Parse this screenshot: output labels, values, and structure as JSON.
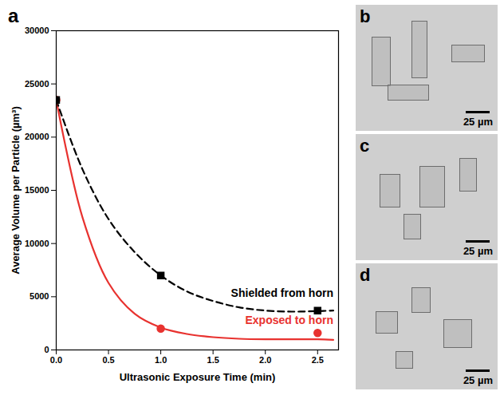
{
  "chart_data": {
    "type": "line",
    "panel_label": "a",
    "x_label": "Ultrasonic Exposure Time (min)",
    "y_label": "Average Volume per Particle (µm³)",
    "xlim": [
      0,
      2.7
    ],
    "xticks": [
      {
        "value": 0,
        "label": "0.0"
      },
      {
        "value": 0.5,
        "label": "0.5"
      },
      {
        "value": 1,
        "label": "1.0"
      },
      {
        "value": 1.5,
        "label": "1.5"
      },
      {
        "value": 2,
        "label": "2.0"
      },
      {
        "value": 2.5,
        "label": "2.5"
      }
    ],
    "ylim": [
      0,
      30000
    ],
    "yticks": [
      0,
      5000,
      10000,
      15000,
      20000,
      25000,
      30000
    ],
    "grid": false,
    "series": [
      {
        "name": "Shielded from horn",
        "color": "#000000",
        "marker": "square",
        "line_style": "dashed",
        "x": [
          0,
          1,
          2.5
        ],
        "values": [
          23500,
          7000,
          3700
        ],
        "curve": {
          "x": [
            0,
            0.25,
            0.5,
            0.75,
            1.0,
            1.25,
            1.5,
            1.75,
            2.0,
            2.25,
            2.5,
            2.65
          ],
          "values": [
            23500,
            17000,
            12300,
            9200,
            7000,
            5500,
            4600,
            4000,
            3700,
            3600,
            3650,
            3700
          ]
        }
      },
      {
        "name": "Exposed to horn",
        "color": "#e8322f",
        "marker": "circle",
        "line_style": "solid",
        "x": [
          0,
          1,
          2.5
        ],
        "values": [
          23500,
          2000,
          1600
        ],
        "curve": {
          "x": [
            0,
            0.25,
            0.5,
            0.75,
            1.0,
            1.25,
            1.5,
            1.75,
            2.0,
            2.25,
            2.5,
            2.65
          ],
          "values": [
            23500,
            12500,
            6300,
            3400,
            2100,
            1500,
            1200,
            1050,
            1000,
            1000,
            1000,
            950
          ]
        }
      }
    ]
  },
  "images": [
    {
      "label": "b",
      "scale_bar": "25 µm"
    },
    {
      "label": "c",
      "scale_bar": "25 µm"
    },
    {
      "label": "d",
      "scale_bar": "25 µm"
    }
  ]
}
